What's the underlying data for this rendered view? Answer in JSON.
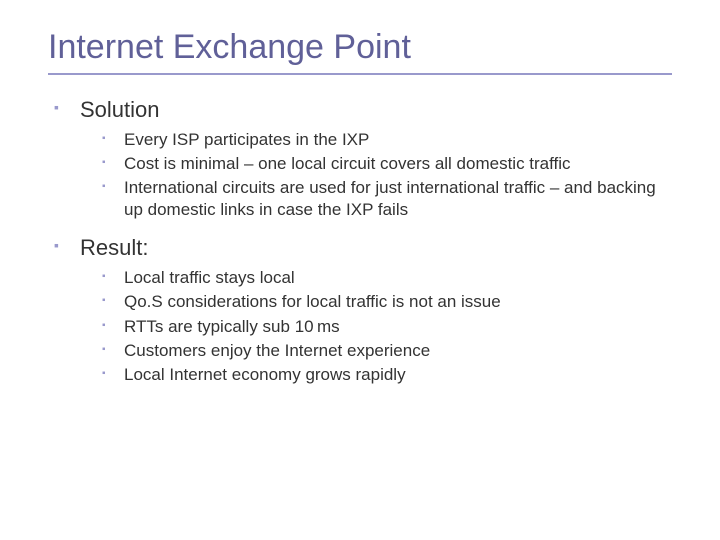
{
  "title": "Internet Exchange Point",
  "colors": {
    "title": "#606098",
    "rule": "#9999cc",
    "bullet": "#9999cc",
    "text": "#333333",
    "background": "#ffffff"
  },
  "typography": {
    "title_fontsize": 34,
    "lvl1_fontsize": 22,
    "lvl2_fontsize": 17,
    "title_family": "Arial",
    "body_family": "Verdana"
  },
  "sections": [
    {
      "heading": "Solution",
      "items": [
        "Every ISP participates in the IXP",
        "Cost is minimal – one local circuit covers all domestic traffic",
        "International circuits are used for just international traffic – and backing up domestic links in case the IXP fails"
      ]
    },
    {
      "heading": "Result:",
      "items": [
        "Local traffic stays local",
        "Qo.S considerations for local traffic is not an issue",
        "RTTs are typically sub 10 ms",
        "Customers enjoy the Internet experience",
        "Local Internet economy grows rapidly"
      ]
    }
  ]
}
